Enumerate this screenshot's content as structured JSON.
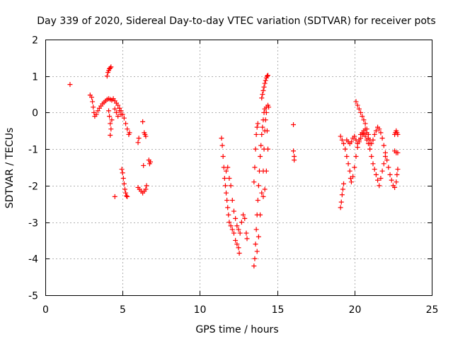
{
  "chart_data": {
    "type": "scatter",
    "title": "Day 339 of 2020, Sidereal Day-to-day VTEC variation (SDTVAR) for receiver pots",
    "xlabel": "GPS time / hours",
    "ylabel": "SDTVAR / TECUs",
    "xlim": [
      0,
      25
    ],
    "ylim": [
      -5,
      2
    ],
    "xticks": [
      "0",
      "5",
      "10",
      "15",
      "20",
      "25"
    ],
    "yticks": [
      "-5",
      "-4",
      "-3",
      "-2",
      "-1",
      "0",
      "1",
      "2"
    ],
    "grid": true,
    "marker": "+",
    "color": "#ff0000",
    "series": [
      {
        "name": "pots",
        "points": [
          [
            1.6,
            0.77
          ],
          [
            2.9,
            0.48
          ],
          [
            3.0,
            0.42
          ],
          [
            3.05,
            0.3
          ],
          [
            3.1,
            0.15
          ],
          [
            3.15,
            0.0
          ],
          [
            3.2,
            -0.1
          ],
          [
            3.3,
            -0.05
          ],
          [
            3.4,
            0.05
          ],
          [
            3.5,
            0.12
          ],
          [
            3.6,
            0.18
          ],
          [
            3.7,
            0.24
          ],
          [
            3.8,
            0.28
          ],
          [
            3.9,
            0.32
          ],
          [
            4.0,
            0.36
          ],
          [
            4.1,
            0.38
          ],
          [
            4.2,
            0.36
          ],
          [
            4.3,
            0.34
          ],
          [
            4.4,
            0.38
          ],
          [
            4.5,
            0.32
          ],
          [
            4.6,
            0.26
          ],
          [
            4.7,
            0.2
          ],
          [
            4.8,
            0.12
          ],
          [
            4.9,
            0.05
          ],
          [
            5.0,
            -0.05
          ],
          [
            5.1,
            -0.15
          ],
          [
            5.2,
            -0.3
          ],
          [
            5.3,
            -0.45
          ],
          [
            5.4,
            -0.6
          ],
          [
            5.45,
            -0.55
          ],
          [
            4.0,
            1.0
          ],
          [
            4.05,
            1.1
          ],
          [
            4.1,
            1.15
          ],
          [
            4.15,
            1.2
          ],
          [
            4.2,
            1.22
          ],
          [
            4.25,
            1.25
          ],
          [
            4.1,
            0.05
          ],
          [
            4.15,
            -0.1
          ],
          [
            4.2,
            -0.3
          ],
          [
            4.25,
            -0.45
          ],
          [
            4.2,
            -0.62
          ],
          [
            4.3,
            -0.2
          ],
          [
            4.5,
            -2.3
          ],
          [
            4.5,
            0.1
          ],
          [
            4.6,
            0.0
          ],
          [
            4.7,
            -0.1
          ],
          [
            4.8,
            0.05
          ],
          [
            4.9,
            -0.05
          ],
          [
            4.95,
            -1.55
          ],
          [
            5.0,
            -1.65
          ],
          [
            5.05,
            -1.8
          ],
          [
            5.1,
            -1.95
          ],
          [
            5.15,
            -2.1
          ],
          [
            5.2,
            -2.2
          ],
          [
            5.25,
            -2.28
          ],
          [
            5.3,
            -2.3
          ],
          [
            6.0,
            -0.82
          ],
          [
            6.05,
            -0.7
          ],
          [
            6.0,
            -2.05
          ],
          [
            6.1,
            -2.1
          ],
          [
            6.2,
            -2.15
          ],
          [
            6.3,
            -2.2
          ],
          [
            6.4,
            -2.15
          ],
          [
            6.5,
            -2.1
          ],
          [
            6.55,
            -2.0
          ],
          [
            6.3,
            -0.25
          ],
          [
            6.35,
            -1.45
          ],
          [
            6.4,
            -0.55
          ],
          [
            6.45,
            -0.6
          ],
          [
            6.5,
            -0.65
          ],
          [
            6.7,
            -1.3
          ],
          [
            6.75,
            -1.4
          ],
          [
            6.8,
            -1.35
          ],
          [
            11.4,
            -0.7
          ],
          [
            11.45,
            -0.9
          ],
          [
            11.5,
            -1.2
          ],
          [
            11.55,
            -1.5
          ],
          [
            11.6,
            -1.8
          ],
          [
            11.65,
            -2.0
          ],
          [
            11.7,
            -2.2
          ],
          [
            11.75,
            -2.4
          ],
          [
            11.8,
            -2.6
          ],
          [
            11.85,
            -2.8
          ],
          [
            11.9,
            -3.0
          ],
          [
            12.0,
            -3.1
          ],
          [
            12.1,
            -3.2
          ],
          [
            12.2,
            -3.3
          ],
          [
            12.3,
            -3.5
          ],
          [
            12.4,
            -3.6
          ],
          [
            12.5,
            -3.7
          ],
          [
            12.55,
            -3.85
          ],
          [
            11.7,
            -1.6
          ],
          [
            11.8,
            -1.5
          ],
          [
            11.9,
            -1.8
          ],
          [
            12.0,
            -2.0
          ],
          [
            12.1,
            -2.4
          ],
          [
            12.2,
            -2.7
          ],
          [
            12.3,
            -2.9
          ],
          [
            12.4,
            -3.1
          ],
          [
            12.5,
            -3.2
          ],
          [
            12.6,
            -3.3
          ],
          [
            12.7,
            -3.0
          ],
          [
            12.8,
            -2.8
          ],
          [
            12.9,
            -2.9
          ],
          [
            13.0,
            -3.3
          ],
          [
            13.05,
            -3.45
          ],
          [
            13.5,
            -4.2
          ],
          [
            13.55,
            -4.0
          ],
          [
            13.6,
            -3.6
          ],
          [
            13.65,
            -3.2
          ],
          [
            13.7,
            -2.8
          ],
          [
            13.75,
            -2.4
          ],
          [
            13.8,
            -2.0
          ],
          [
            13.85,
            -1.6
          ],
          [
            13.9,
            -1.2
          ],
          [
            13.95,
            -0.9
          ],
          [
            14.0,
            -0.6
          ],
          [
            14.05,
            -0.4
          ],
          [
            14.1,
            -0.2
          ],
          [
            14.15,
            0.0
          ],
          [
            14.2,
            0.1
          ],
          [
            14.3,
            0.15
          ],
          [
            14.4,
            0.2
          ],
          [
            14.45,
            0.15
          ],
          [
            13.7,
            -3.8
          ],
          [
            13.8,
            -3.4
          ],
          [
            13.9,
            -2.8
          ],
          [
            14.0,
            -2.2
          ],
          [
            14.1,
            -1.6
          ],
          [
            14.15,
            -1.0
          ],
          [
            14.2,
            -0.5
          ],
          [
            14.25,
            -0.2
          ],
          [
            14.3,
            0.0
          ],
          [
            14.35,
            -0.5
          ],
          [
            14.4,
            -1.0
          ],
          [
            14.3,
            -1.6
          ],
          [
            14.2,
            -2.1
          ],
          [
            14.1,
            -2.3
          ],
          [
            14.0,
            0.4
          ],
          [
            14.05,
            0.5
          ],
          [
            14.1,
            0.6
          ],
          [
            14.15,
            0.7
          ],
          [
            14.2,
            0.8
          ],
          [
            14.25,
            0.88
          ],
          [
            14.3,
            0.95
          ],
          [
            14.35,
            1.0
          ],
          [
            14.4,
            1.02
          ],
          [
            13.5,
            -1.9
          ],
          [
            13.55,
            -1.5
          ],
          [
            13.6,
            -1.0
          ],
          [
            13.65,
            -0.6
          ],
          [
            13.7,
            -0.4
          ],
          [
            13.75,
            -0.3
          ],
          [
            16.05,
            -0.33
          ],
          [
            16.05,
            -1.05
          ],
          [
            16.1,
            -1.2
          ],
          [
            16.1,
            -1.3
          ],
          [
            19.1,
            -2.6
          ],
          [
            19.15,
            -2.45
          ],
          [
            19.2,
            -2.25
          ],
          [
            19.25,
            -2.1
          ],
          [
            19.3,
            -1.95
          ],
          [
            19.1,
            -0.65
          ],
          [
            19.2,
            -0.75
          ],
          [
            19.3,
            -0.85
          ],
          [
            19.4,
            -1.0
          ],
          [
            19.5,
            -1.2
          ],
          [
            19.6,
            -1.4
          ],
          [
            19.7,
            -1.6
          ],
          [
            19.75,
            -1.8
          ],
          [
            19.8,
            -1.9
          ],
          [
            19.9,
            -1.75
          ],
          [
            20.0,
            -1.5
          ],
          [
            20.1,
            -1.2
          ],
          [
            20.2,
            -0.95
          ],
          [
            20.3,
            -0.75
          ],
          [
            20.4,
            -0.6
          ],
          [
            20.5,
            -0.55
          ],
          [
            20.6,
            -0.58
          ],
          [
            20.7,
            -0.65
          ],
          [
            20.8,
            -0.75
          ],
          [
            20.9,
            -0.85
          ],
          [
            21.0,
            -1.0
          ],
          [
            21.1,
            -1.2
          ],
          [
            21.2,
            -1.4
          ],
          [
            21.3,
            -1.55
          ],
          [
            21.4,
            -1.7
          ],
          [
            21.5,
            -1.85
          ],
          [
            21.6,
            -2.0
          ],
          [
            21.7,
            -1.8
          ],
          [
            21.8,
            -1.6
          ],
          [
            21.9,
            -1.4
          ],
          [
            22.0,
            -1.2
          ],
          [
            20.1,
            0.3
          ],
          [
            20.2,
            0.2
          ],
          [
            20.3,
            0.1
          ],
          [
            20.4,
            0.0
          ],
          [
            20.5,
            -0.1
          ],
          [
            20.6,
            -0.2
          ],
          [
            20.7,
            -0.3
          ],
          [
            20.8,
            -0.45
          ],
          [
            20.9,
            -0.6
          ],
          [
            21.0,
            -0.75
          ],
          [
            21.1,
            -0.85
          ],
          [
            21.2,
            -0.75
          ],
          [
            21.3,
            -0.6
          ],
          [
            21.4,
            -0.5
          ],
          [
            21.5,
            -0.4
          ],
          [
            21.6,
            -0.45
          ],
          [
            21.7,
            -0.55
          ],
          [
            21.8,
            -0.7
          ],
          [
            21.9,
            -0.9
          ],
          [
            22.0,
            -1.1
          ],
          [
            22.1,
            -1.3
          ],
          [
            22.2,
            -1.5
          ],
          [
            22.3,
            -1.7
          ],
          [
            22.4,
            -1.85
          ],
          [
            22.5,
            -2.0
          ],
          [
            22.6,
            -2.05
          ],
          [
            22.7,
            -1.9
          ],
          [
            22.75,
            -1.7
          ],
          [
            22.8,
            -1.55
          ],
          [
            19.5,
            -0.75
          ],
          [
            19.6,
            -0.8
          ],
          [
            19.7,
            -0.85
          ],
          [
            19.8,
            -0.8
          ],
          [
            19.9,
            -0.7
          ],
          [
            20.0,
            -0.65
          ],
          [
            20.1,
            -0.75
          ],
          [
            20.2,
            -0.85
          ],
          [
            20.3,
            -0.8
          ],
          [
            20.4,
            -0.7
          ],
          [
            20.5,
            -0.6
          ],
          [
            20.6,
            -0.5
          ],
          [
            20.7,
            -0.45
          ],
          [
            20.8,
            -0.55
          ],
          [
            20.9,
            -0.7
          ],
          [
            21.0,
            -0.85
          ],
          [
            22.6,
            -0.6
          ],
          [
            22.65,
            -0.55
          ],
          [
            22.7,
            -0.5
          ],
          [
            22.75,
            -0.55
          ],
          [
            22.8,
            -0.6
          ],
          [
            22.6,
            -1.05
          ],
          [
            22.7,
            -1.1
          ],
          [
            22.8,
            -1.1
          ]
        ]
      }
    ]
  }
}
